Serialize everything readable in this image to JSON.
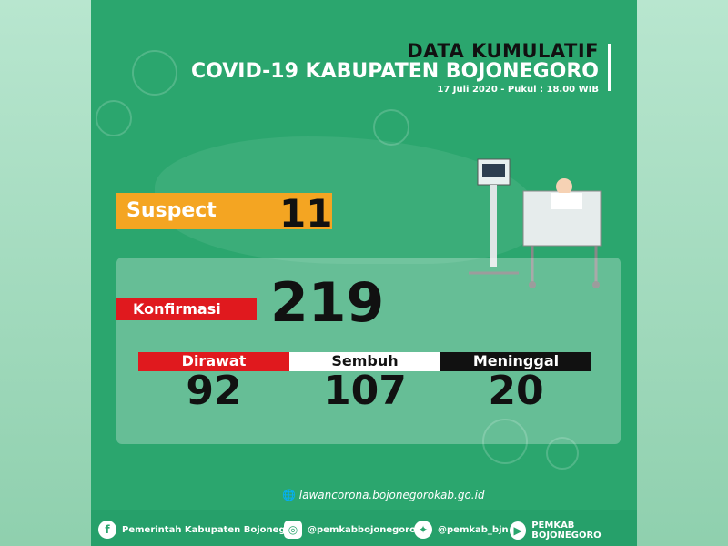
{
  "header": {
    "line1": "DATA KUMULATIF",
    "line2": "COVID-19 KABUPATEN BOJONEGORO",
    "line3": "17 Juli 2020 - Pukul : 18.00 WIB"
  },
  "suspect": {
    "label": "Suspect",
    "value": "11"
  },
  "konfirmasi": {
    "label": "Konfirmasi",
    "value": "219"
  },
  "categories": [
    {
      "label": "Dirawat",
      "value": "92",
      "color": "#e0191e"
    },
    {
      "label": "Sembuh",
      "value": "107",
      "color": "#ffffff"
    },
    {
      "label": "Meninggal",
      "value": "20",
      "color": "#111111"
    }
  ],
  "website": "lawancorona.bojonegorokab.go.id",
  "social": [
    {
      "icon": "facebook-icon",
      "label": "Pemerintah Kabupaten Bojonegoro"
    },
    {
      "icon": "instagram-icon",
      "label": "@pemkabbojonegoro"
    },
    {
      "icon": "twitter-icon",
      "label": "@pemkab_bjn"
    },
    {
      "icon": "youtube-icon",
      "label": "PEMKAB BOJONEGORO"
    }
  ],
  "colors": {
    "background": "#2ba66e",
    "suspect": "#f4a522",
    "konfirmasi": "#e0191e"
  }
}
